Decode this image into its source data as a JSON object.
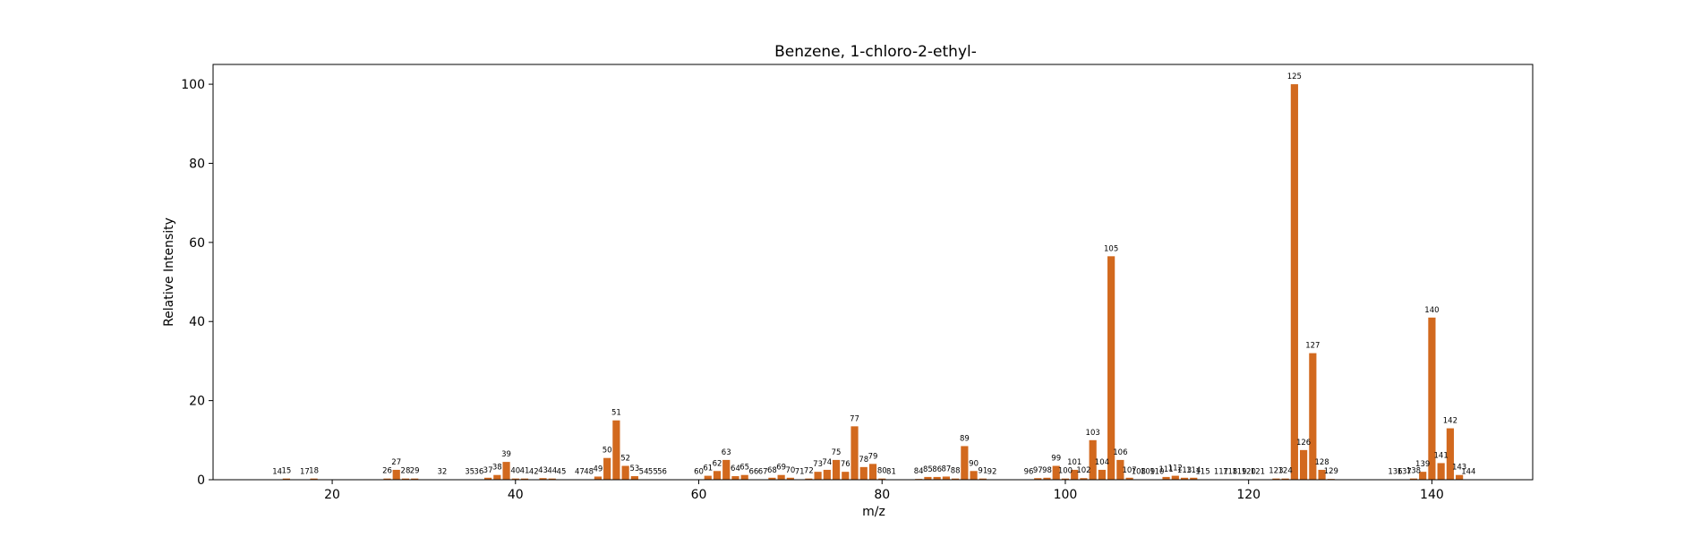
{
  "chart_data": {
    "type": "bar",
    "title": "Benzene, 1-chloro-2-ethyl-",
    "xlabel": "m/z",
    "ylabel": "Relative Intensity",
    "xlim": [
      7,
      151
    ],
    "ylim": [
      0,
      105
    ],
    "xticks": [
      20,
      40,
      60,
      80,
      100,
      120,
      140
    ],
    "yticks": [
      0,
      20,
      40,
      60,
      80,
      100
    ],
    "grid": false,
    "bar_color": "#d2691e",
    "points": [
      {
        "x": 14,
        "y": 0.1
      },
      {
        "x": 15,
        "y": 0.3
      },
      {
        "x": 17,
        "y": 0.1
      },
      {
        "x": 18,
        "y": 0.3
      },
      {
        "x": 26,
        "y": 0.3
      },
      {
        "x": 27,
        "y": 2.5
      },
      {
        "x": 28,
        "y": 0.3
      },
      {
        "x": 29,
        "y": 0.3
      },
      {
        "x": 32,
        "y": 0.1
      },
      {
        "x": 35,
        "y": 0.1
      },
      {
        "x": 36,
        "y": 0.1
      },
      {
        "x": 37,
        "y": 0.5
      },
      {
        "x": 38,
        "y": 1.2
      },
      {
        "x": 39,
        "y": 4.5
      },
      {
        "x": 40,
        "y": 0.3
      },
      {
        "x": 41,
        "y": 0.3
      },
      {
        "x": 42,
        "y": 0.1
      },
      {
        "x": 43,
        "y": 0.4
      },
      {
        "x": 44,
        "y": 0.3
      },
      {
        "x": 45,
        "y": 0.1
      },
      {
        "x": 47,
        "y": 0.1
      },
      {
        "x": 48,
        "y": 0.1
      },
      {
        "x": 49,
        "y": 0.8
      },
      {
        "x": 50,
        "y": 5.5
      },
      {
        "x": 51,
        "y": 15.0
      },
      {
        "x": 52,
        "y": 3.5
      },
      {
        "x": 53,
        "y": 0.9
      },
      {
        "x": 54,
        "y": 0.1
      },
      {
        "x": 55,
        "y": 0.1
      },
      {
        "x": 56,
        "y": 0.1
      },
      {
        "x": 60,
        "y": 0.1
      },
      {
        "x": 61,
        "y": 1.0
      },
      {
        "x": 62,
        "y": 2.2
      },
      {
        "x": 63,
        "y": 5.0
      },
      {
        "x": 64,
        "y": 0.9
      },
      {
        "x": 65,
        "y": 1.2
      },
      {
        "x": 66,
        "y": 0.1
      },
      {
        "x": 67,
        "y": 0.1
      },
      {
        "x": 68,
        "y": 0.5
      },
      {
        "x": 69,
        "y": 1.2
      },
      {
        "x": 70,
        "y": 0.5
      },
      {
        "x": 71,
        "y": 0.1
      },
      {
        "x": 72,
        "y": 0.3
      },
      {
        "x": 73,
        "y": 2.0
      },
      {
        "x": 74,
        "y": 2.5
      },
      {
        "x": 75,
        "y": 5.0
      },
      {
        "x": 76,
        "y": 2.0
      },
      {
        "x": 77,
        "y": 13.5
      },
      {
        "x": 78,
        "y": 3.2
      },
      {
        "x": 79,
        "y": 4.0
      },
      {
        "x": 80,
        "y": 0.3
      },
      {
        "x": 81,
        "y": 0.1
      },
      {
        "x": 84,
        "y": 0.2
      },
      {
        "x": 85,
        "y": 0.7
      },
      {
        "x": 86,
        "y": 0.7
      },
      {
        "x": 87,
        "y": 0.8
      },
      {
        "x": 88,
        "y": 0.3
      },
      {
        "x": 89,
        "y": 8.5
      },
      {
        "x": 90,
        "y": 2.2
      },
      {
        "x": 91,
        "y": 0.3
      },
      {
        "x": 92,
        "y": 0.1
      },
      {
        "x": 96,
        "y": 0.1
      },
      {
        "x": 97,
        "y": 0.4
      },
      {
        "x": 98,
        "y": 0.5
      },
      {
        "x": 99,
        "y": 3.5
      },
      {
        "x": 100,
        "y": 0.3
      },
      {
        "x": 101,
        "y": 2.5
      },
      {
        "x": 102,
        "y": 0.4
      },
      {
        "x": 103,
        "y": 10.0
      },
      {
        "x": 104,
        "y": 2.5
      },
      {
        "x": 105,
        "y": 56.5
      },
      {
        "x": 106,
        "y": 5.0
      },
      {
        "x": 107,
        "y": 0.5
      },
      {
        "x": 108,
        "y": 0.1
      },
      {
        "x": 109,
        "y": 0.1
      },
      {
        "x": 110,
        "y": 0.1
      },
      {
        "x": 111,
        "y": 0.7
      },
      {
        "x": 112,
        "y": 1.0
      },
      {
        "x": 113,
        "y": 0.5
      },
      {
        "x": 114,
        "y": 0.5
      },
      {
        "x": 115,
        "y": 0.1
      },
      {
        "x": 117,
        "y": 0.1
      },
      {
        "x": 118,
        "y": 0.1
      },
      {
        "x": 119,
        "y": 0.1
      },
      {
        "x": 120,
        "y": 0.1
      },
      {
        "x": 121,
        "y": 0.1
      },
      {
        "x": 123,
        "y": 0.3
      },
      {
        "x": 124,
        "y": 0.3
      },
      {
        "x": 125,
        "y": 100.0
      },
      {
        "x": 126,
        "y": 7.5
      },
      {
        "x": 127,
        "y": 32.0
      },
      {
        "x": 128,
        "y": 2.5
      },
      {
        "x": 129,
        "y": 0.2
      },
      {
        "x": 136,
        "y": 0.1
      },
      {
        "x": 137,
        "y": 0.1
      },
      {
        "x": 138,
        "y": 0.3
      },
      {
        "x": 139,
        "y": 2.0
      },
      {
        "x": 140,
        "y": 41.0
      },
      {
        "x": 141,
        "y": 4.2
      },
      {
        "x": 142,
        "y": 13.0
      },
      {
        "x": 143,
        "y": 1.2
      },
      {
        "x": 144,
        "y": 0.1
      }
    ]
  }
}
